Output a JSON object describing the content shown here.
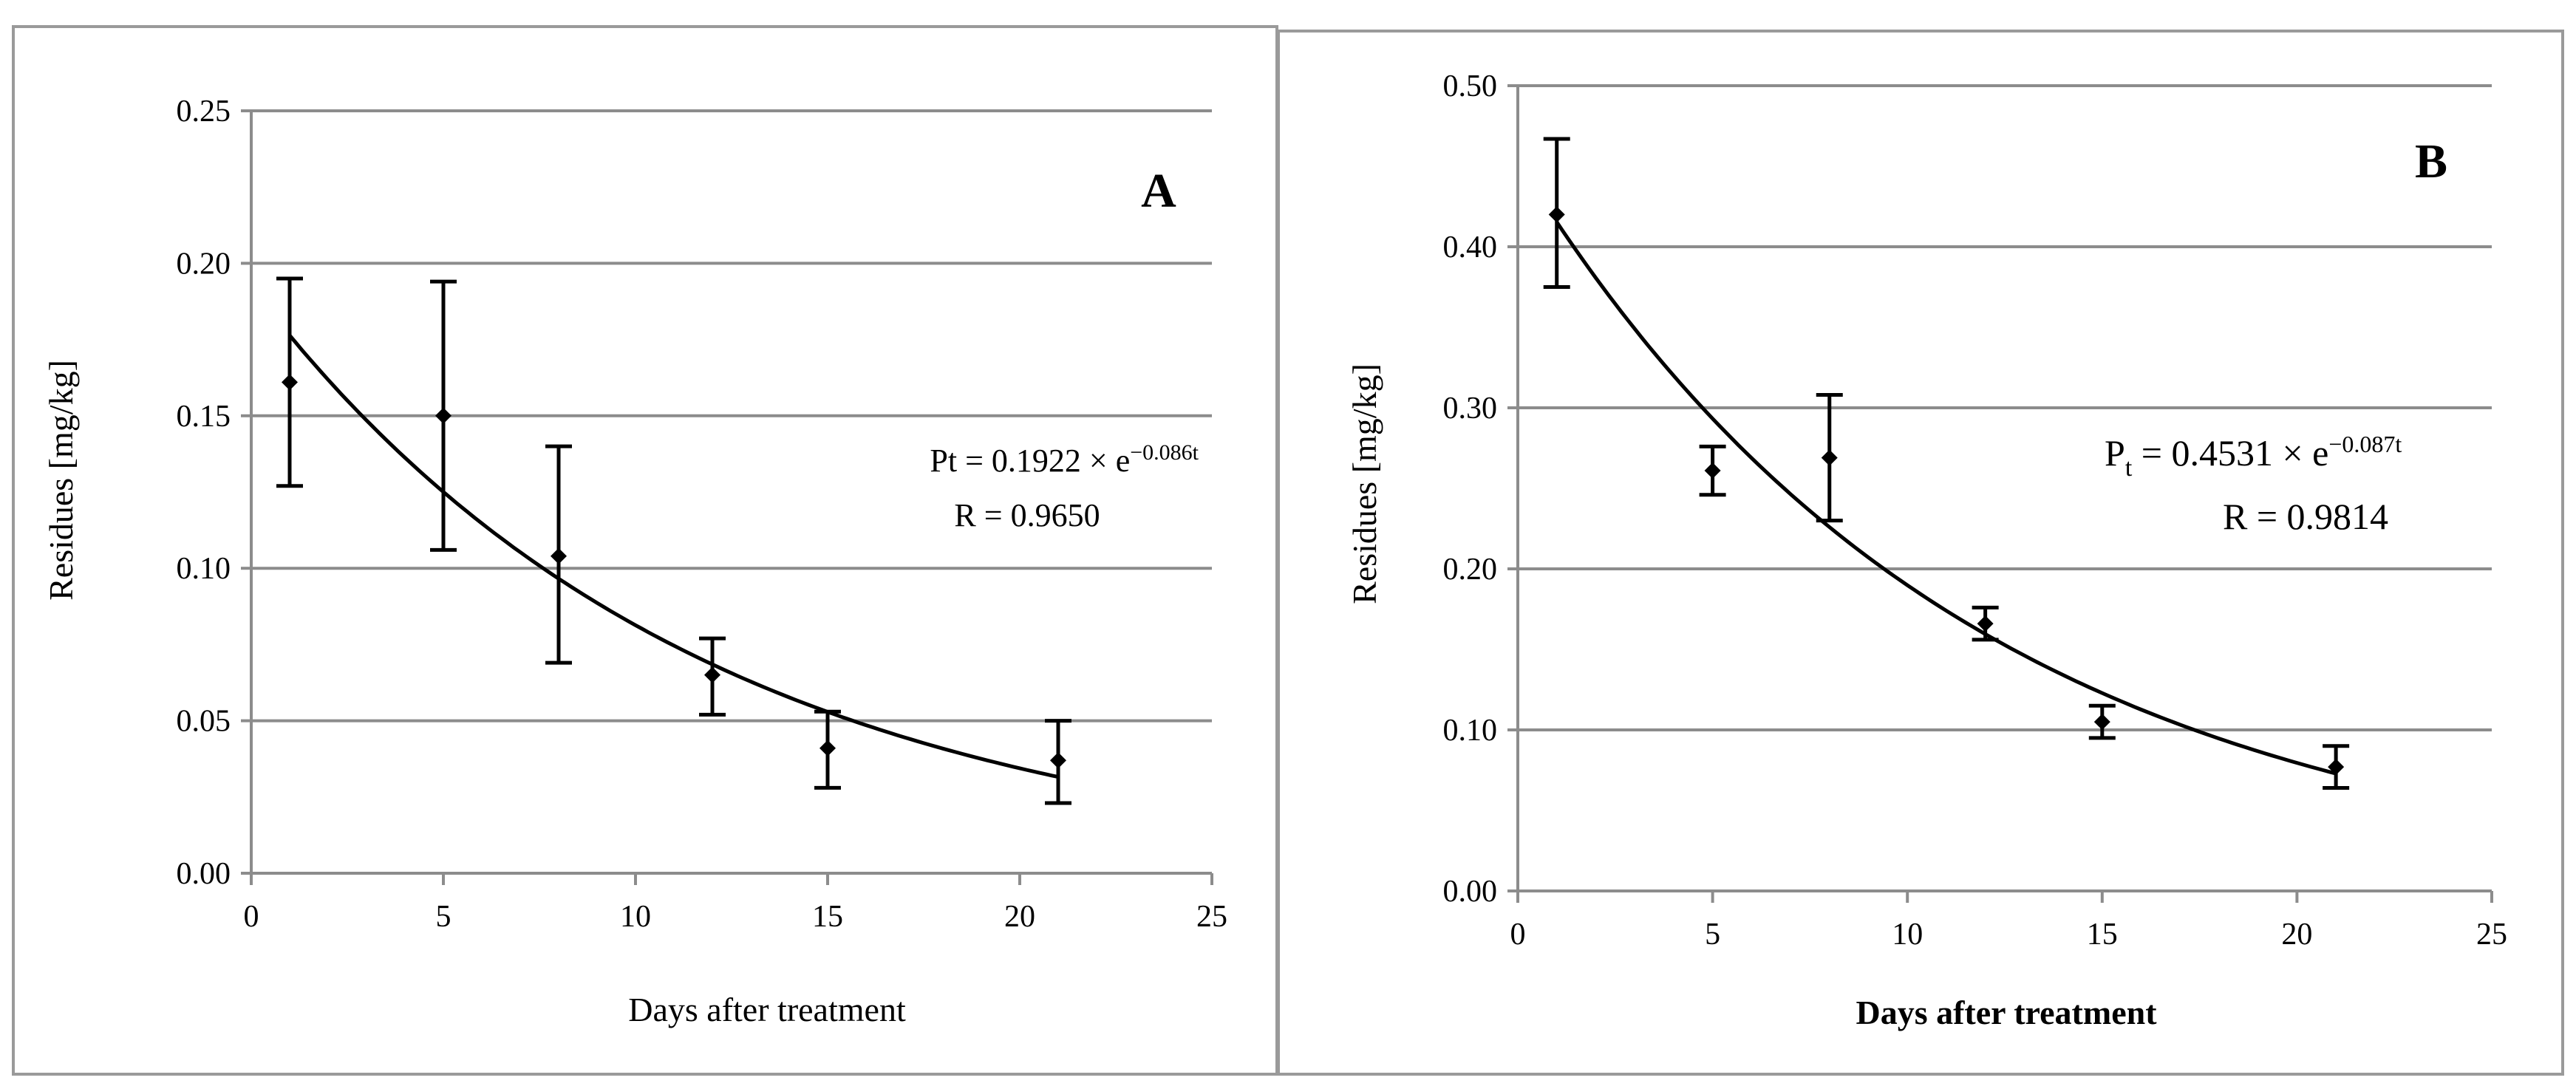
{
  "chart_data": [
    {
      "type": "scatter",
      "panel": "A",
      "xlabel": "Days after treatment",
      "ylabel": "Residues [mg/kg]",
      "xlim": [
        0,
        25
      ],
      "ylim": [
        0,
        0.25
      ],
      "x_ticks": [
        "0",
        "5",
        "10",
        "15",
        "20",
        "25"
      ],
      "y_ticks": [
        "0.00",
        "0.05",
        "0.10",
        "0.15",
        "0.20",
        "0.25"
      ],
      "grid": true,
      "x": [
        1,
        5,
        8,
        12,
        15,
        21
      ],
      "y": [
        0.161,
        0.15,
        0.104,
        0.065,
        0.041,
        0.037
      ],
      "err_low": [
        0.127,
        0.106,
        0.069,
        0.052,
        0.028,
        0.023
      ],
      "err_high": [
        0.195,
        0.194,
        0.14,
        0.077,
        0.053,
        0.05
      ],
      "fit": {
        "a": 0.1922,
        "k": 0.086,
        "x_from": 1,
        "x_to": 21
      },
      "equation": {
        "base": "Pt = 0.1922 × e",
        "sub": "",
        "exp": "−0.086t",
        "r": "R = 0.9650"
      }
    },
    {
      "type": "scatter",
      "panel": "B",
      "xlabel": "Days after treatment",
      "ylabel": "Residues [mg/kg]",
      "xlim": [
        0,
        25
      ],
      "ylim": [
        0,
        0.5
      ],
      "x_ticks": [
        "0",
        "5",
        "10",
        "15",
        "20",
        "25"
      ],
      "y_ticks": [
        "0.00",
        "0.10",
        "0.20",
        "0.30",
        "0.40",
        "0.50"
      ],
      "grid": true,
      "x": [
        1,
        5,
        8,
        12,
        15,
        21
      ],
      "y": [
        0.42,
        0.261,
        0.269,
        0.166,
        0.105,
        0.077
      ],
      "err_low": [
        0.375,
        0.246,
        0.23,
        0.156,
        0.095,
        0.064
      ],
      "err_high": [
        0.467,
        0.276,
        0.308,
        0.176,
        0.115,
        0.09
      ],
      "fit": {
        "a": 0.4531,
        "k": 0.087,
        "x_from": 1,
        "x_to": 21
      },
      "equation": {
        "base": "P",
        "sub": "t",
        "exp": "−0.087t",
        "tail": " = 0.4531 × e",
        "r": "R = 0.9814"
      }
    }
  ]
}
